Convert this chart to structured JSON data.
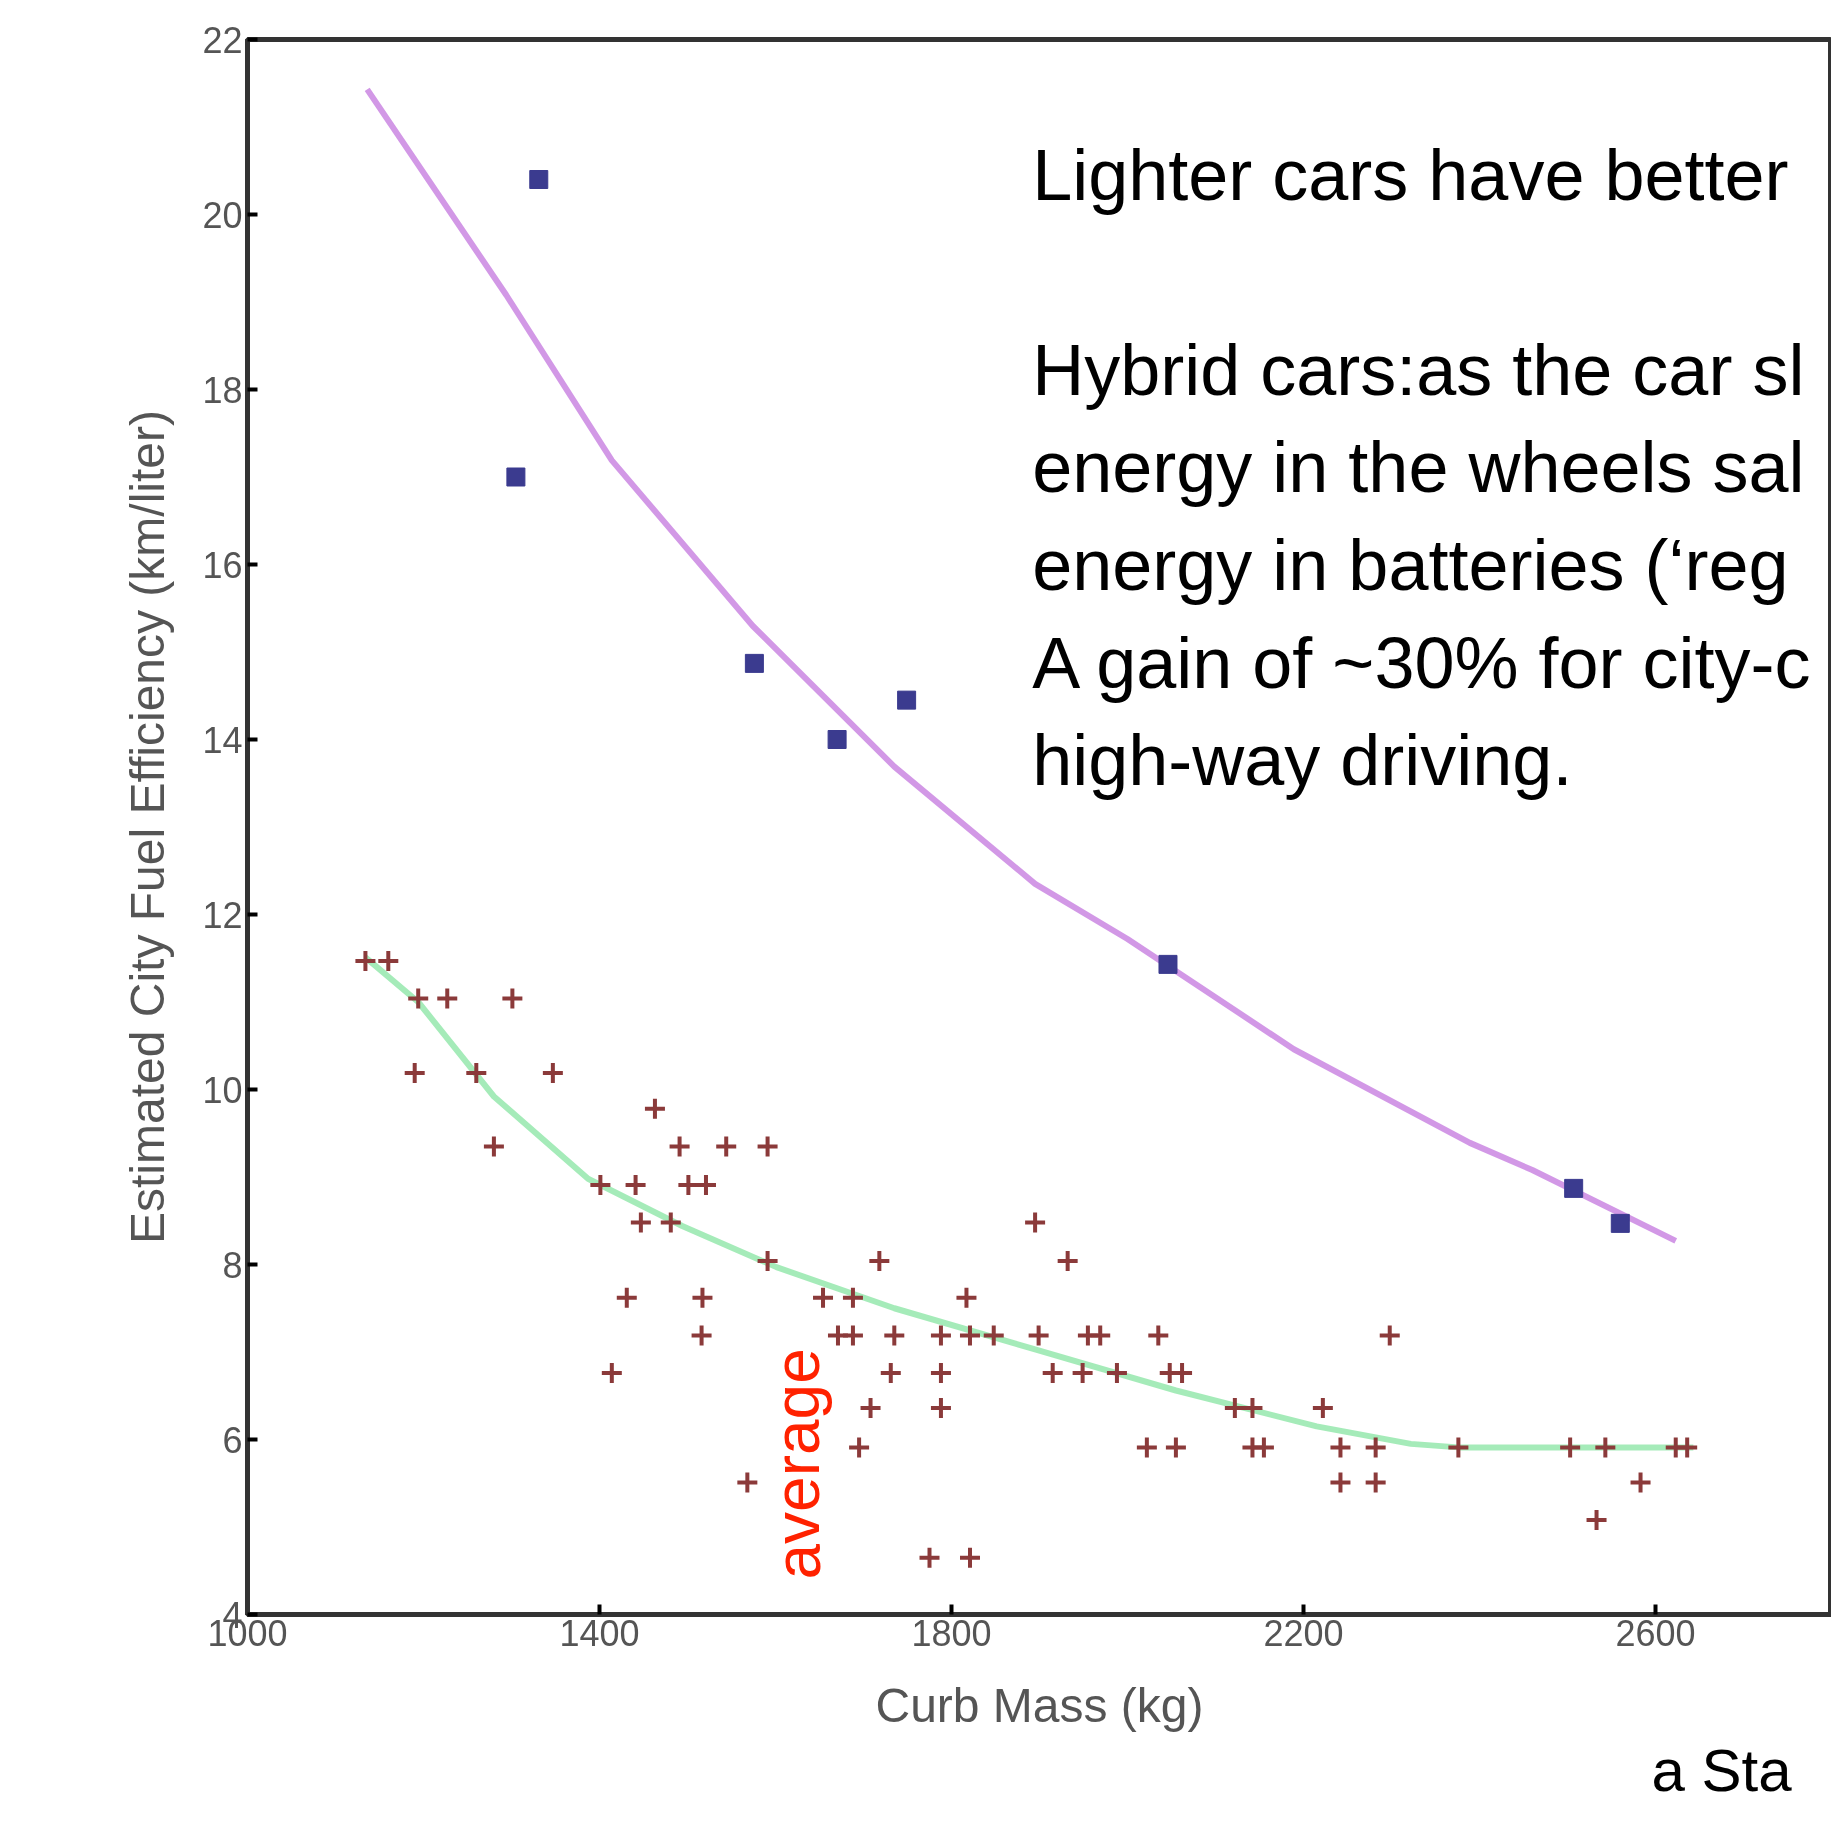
{
  "chart_data": {
    "type": "scatter",
    "xlabel": "Curb Mass (kg)",
    "ylabel": "Estimated City Fuel Efficiency (km/liter)",
    "xlim": [
      1000,
      2800
    ],
    "ylim": [
      4,
      22
    ],
    "xticks": [
      1000,
      1400,
      1800,
      2200,
      2600
    ],
    "yticks": [
      4,
      6,
      8,
      10,
      12,
      14,
      16,
      18,
      20,
      22
    ],
    "grid": false,
    "annotations": [
      "Lighter cars have better\n\nHybrid cars:as the car sl\nenergy in the wheels sal\nenergy in batteries (‘reg\nA gain of ~30% for city-c\nhigh-way driving.",
      "average",
      "a Sta"
    ],
    "series": [
      {
        "type": "line",
        "color": "#c77ee0",
        "x": [
          1136,
          1294,
          1414,
          1574,
          1735,
          1895,
          2000,
          2189,
          2389,
          2460,
          2623
        ],
        "values": [
          21.43,
          19.08,
          17.19,
          15.3,
          13.69,
          12.35,
          11.72,
          10.46,
          9.39,
          9.08,
          8.27
        ]
      },
      {
        "type": "line",
        "color": "#8ee6a8",
        "x": [
          1134,
          1194,
          1280,
          1387,
          1494,
          1601,
          1735,
          1895,
          2055,
          2215,
          2322,
          2376,
          2549,
          2643
        ],
        "values": [
          11.51,
          11.0,
          9.92,
          8.98,
          8.44,
          7.97,
          7.5,
          7.03,
          6.56,
          6.15,
          5.95,
          5.91,
          5.91,
          5.91
        ]
      },
      {
        "marker": "square",
        "color": "#3b3b8f",
        "x": [
          1331,
          1305,
          1576,
          1670,
          1749,
          2046,
          2507,
          2560
        ],
        "values": [
          20.4,
          17.0,
          14.87,
          14.0,
          14.45,
          11.43,
          8.87,
          8.47
        ]
      },
      {
        "marker": "cross",
        "color": "#8b3a3a",
        "x": [
          1134,
          1160,
          1194,
          1227,
          1301,
          1190,
          1260,
          1347,
          1280,
          1463,
          1491,
          1544,
          1591,
          1401,
          1441,
          1501,
          1521,
          1447,
          1481,
          1591,
          1718,
          1895,
          1932,
          1431,
          1517,
          1654,
          1688,
          1817,
          1516,
          1671,
          1688,
          1735,
          1788,
          1821,
          1848,
          1899,
          1955,
          1969,
          2035,
          2298,
          1414,
          1731,
          1788,
          1915,
          1949,
          1988,
          2048,
          2062,
          1708,
          1788,
          2122,
          2142,
          2222,
          1695,
          2022,
          2055,
          2142,
          2155,
          2242,
          2282,
          2376,
          2503,
          2543,
          2623,
          2636,
          1568,
          2242,
          2282,
          2583,
          2533,
          1775,
          1821
        ],
        "values": [
          11.47,
          11.47,
          11.04,
          11.04,
          11.04,
          10.19,
          10.19,
          10.19,
          9.35,
          9.78,
          9.35,
          9.35,
          9.35,
          8.91,
          8.91,
          8.91,
          8.91,
          8.48,
          8.48,
          8.04,
          8.04,
          8.48,
          8.04,
          7.62,
          7.62,
          7.62,
          7.62,
          7.62,
          7.19,
          7.19,
          7.19,
          7.19,
          7.19,
          7.19,
          7.19,
          7.19,
          7.19,
          7.19,
          7.19,
          7.19,
          6.76,
          6.76,
          6.76,
          6.76,
          6.76,
          6.76,
          6.76,
          6.76,
          6.36,
          6.36,
          6.36,
          6.36,
          6.36,
          5.91,
          5.91,
          5.91,
          5.91,
          5.91,
          5.91,
          5.91,
          5.91,
          5.91,
          5.91,
          5.91,
          5.91,
          5.51,
          5.51,
          5.51,
          5.51,
          5.08,
          4.65,
          4.65
        ]
      }
    ]
  }
}
